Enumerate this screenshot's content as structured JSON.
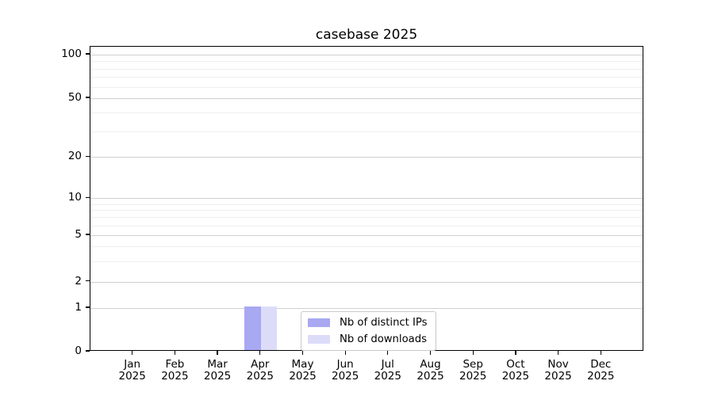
{
  "chart_data": {
    "type": "bar",
    "title": "casebase 2025",
    "categories": [
      "Jan 2025",
      "Feb 2025",
      "Mar 2025",
      "Apr 2025",
      "May 2025",
      "Jun 2025",
      "Jul 2025",
      "Aug 2025",
      "Sep 2025",
      "Oct 2025",
      "Nov 2025",
      "Dec 2025"
    ],
    "series": [
      {
        "name": "Nb of distinct IPs",
        "color": "#a8a8f3",
        "values": [
          0,
          0,
          0,
          1,
          0,
          0,
          0,
          0,
          0,
          0,
          0,
          0
        ]
      },
      {
        "name": "Nb of downloads",
        "color": "#dcdcf9",
        "values": [
          0,
          0,
          0,
          1,
          0,
          0,
          0,
          0,
          0,
          0,
          0,
          0
        ]
      }
    ],
    "xlabel": "",
    "ylabel": "",
    "yscale": "symlog",
    "ylim": [
      0,
      110
    ],
    "y_major_ticks": [
      0,
      1,
      2,
      5,
      10,
      20,
      50,
      100
    ],
    "y_minor_ticks": [
      3,
      4,
      6,
      7,
      8,
      9,
      30,
      40,
      60,
      70,
      80,
      90
    ],
    "grid": "horizontal",
    "legend_position": "lower center inside plot"
  },
  "colors": {
    "axis": "#000000",
    "major_grid": "#d0d0d0",
    "minor_grid": "#efefef",
    "background": "#ffffff",
    "legend_border": "#c9c9c9"
  }
}
